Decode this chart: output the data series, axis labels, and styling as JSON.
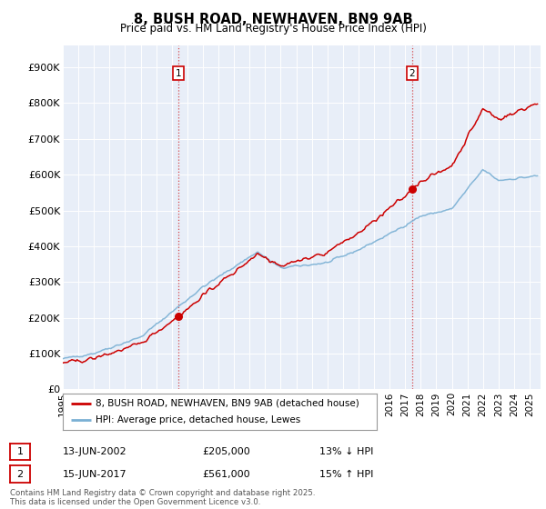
{
  "title": "8, BUSH ROAD, NEWHAVEN, BN9 9AB",
  "subtitle": "Price paid vs. HM Land Registry's House Price Index (HPI)",
  "ylabel_ticks": [
    "£0",
    "£100K",
    "£200K",
    "£300K",
    "£400K",
    "£500K",
    "£600K",
    "£700K",
    "£800K",
    "£900K"
  ],
  "ytick_values": [
    0,
    100000,
    200000,
    300000,
    400000,
    500000,
    600000,
    700000,
    800000,
    900000
  ],
  "ylim": [
    0,
    960000
  ],
  "xlim_start": 1995.0,
  "xlim_end": 2025.7,
  "house_color": "#cc0000",
  "hpi_color": "#7ab0d4",
  "background_color": "#e8eef8",
  "legend1": "8, BUSH ROAD, NEWHAVEN, BN9 9AB (detached house)",
  "legend2": "HPI: Average price, detached house, Lewes",
  "marker1_year": 2002.44,
  "marker1_price": 205000,
  "marker1_label": "1",
  "marker1_date": "13-JUN-2002",
  "marker1_amount": "£205,000",
  "marker1_hpi": "13% ↓ HPI",
  "marker2_year": 2017.44,
  "marker2_price": 561000,
  "marker2_label": "2",
  "marker2_date": "15-JUN-2017",
  "marker2_amount": "£561,000",
  "marker2_hpi": "15% ↑ HPI",
  "footnote": "Contains HM Land Registry data © Crown copyright and database right 2025.\nThis data is licensed under the Open Government Licence v3.0."
}
